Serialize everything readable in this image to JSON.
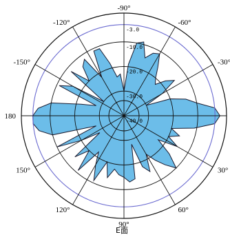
{
  "colors": {
    "fill": "#6cbde9",
    "stroke": "#1a1a2e",
    "grid": "#111111",
    "outer_ring": "#6a6ad0"
  },
  "caption": "E面",
  "chart_data": {
    "type": "polar-area",
    "title": "",
    "rlim": [
      -40,
      0
    ],
    "rings": [
      -40,
      -30,
      -20,
      -10,
      -3
    ],
    "ring_labels": [
      "-40.0",
      "-30.0",
      "-20.0",
      "-10.0",
      "-3.0"
    ],
    "angle_ticks": [
      {
        "deg": -90,
        "label": "-90°"
      },
      {
        "deg": -60,
        "label": "-60°"
      },
      {
        "deg": -30,
        "label": "-30°"
      },
      {
        "deg": 0,
        "label": "0°"
      },
      {
        "deg": 30,
        "label": "30°"
      },
      {
        "deg": 60,
        "label": "60°"
      },
      {
        "deg": 90,
        "label": "90°"
      },
      {
        "deg": 120,
        "label": "120°"
      },
      {
        "deg": 150,
        "label": "150°"
      },
      {
        "deg": 180,
        "label": "180"
      },
      {
        "deg": -150,
        "label": "-150°"
      },
      {
        "deg": -120,
        "label": "-120°"
      }
    ],
    "pattern": [
      [
        -90,
        -30
      ],
      [
        -85,
        -19
      ],
      [
        -80,
        -10
      ],
      [
        -75,
        -9
      ],
      [
        -70,
        -15
      ],
      [
        -65,
        -12
      ],
      [
        -60,
        -11
      ],
      [
        -55,
        -16
      ],
      [
        -50,
        -20
      ],
      [
        -45,
        -22
      ],
      [
        -40,
        -18
      ],
      [
        -35,
        -15
      ],
      [
        -30,
        -22
      ],
      [
        -25,
        -30
      ],
      [
        -20,
        -20
      ],
      [
        -15,
        -14
      ],
      [
        -10,
        -10
      ],
      [
        -5,
        -3
      ],
      [
        0,
        -1
      ],
      [
        5,
        -3
      ],
      [
        10,
        -11
      ],
      [
        15,
        -20
      ],
      [
        20,
        -16
      ],
      [
        25,
        -20
      ],
      [
        30,
        -15
      ],
      [
        35,
        -23
      ],
      [
        40,
        -16
      ],
      [
        45,
        -10
      ],
      [
        50,
        -14
      ],
      [
        55,
        -18
      ],
      [
        60,
        -22
      ],
      [
        65,
        -15
      ],
      [
        70,
        -18
      ],
      [
        75,
        -28
      ],
      [
        80,
        -14
      ],
      [
        85,
        -13
      ],
      [
        90,
        -15
      ],
      [
        95,
        -16
      ],
      [
        100,
        -18
      ],
      [
        105,
        -14
      ],
      [
        110,
        -20
      ],
      [
        115,
        -11
      ],
      [
        120,
        -17
      ],
      [
        125,
        -22
      ],
      [
        130,
        -11
      ],
      [
        135,
        -20
      ],
      [
        140,
        -14
      ],
      [
        145,
        -28
      ],
      [
        150,
        -20
      ],
      [
        155,
        -10
      ],
      [
        160,
        -28
      ],
      [
        165,
        -10
      ],
      [
        170,
        -5
      ],
      [
        175,
        -3
      ],
      [
        180,
        -3
      ],
      [
        -175,
        -5
      ],
      [
        -170,
        -10
      ],
      [
        -165,
        -22
      ],
      [
        -160,
        -28
      ],
      [
        -155,
        -11
      ],
      [
        -150,
        -16
      ],
      [
        -145,
        -30
      ],
      [
        -140,
        -12
      ],
      [
        -135,
        -20
      ],
      [
        -130,
        -14
      ],
      [
        -125,
        -12
      ],
      [
        -120,
        -22
      ],
      [
        -115,
        -11
      ],
      [
        -110,
        -11
      ],
      [
        -105,
        -18
      ],
      [
        -100,
        -24
      ],
      [
        -95,
        -23
      ]
    ]
  }
}
